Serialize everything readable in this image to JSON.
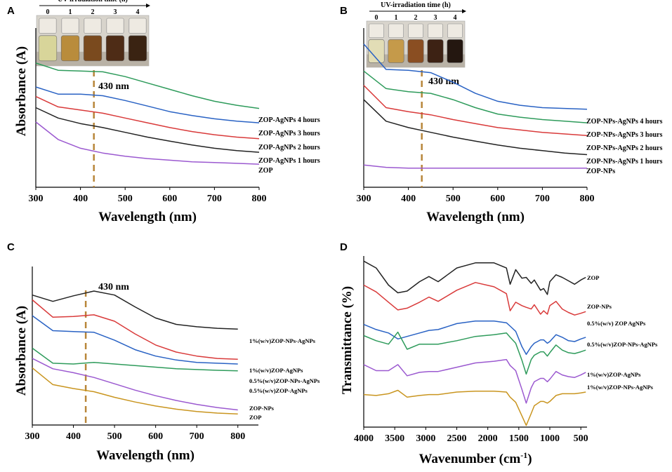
{
  "chart_data": [
    {
      "panel": "A",
      "type": "line",
      "xlabel": "Wavelength (nm)",
      "ylabel": "Absorbance (A)",
      "xlim": [
        300,
        800
      ],
      "xticks": [
        300,
        400,
        500,
        600,
        700,
        800
      ],
      "ylim": [
        0,
        10
      ],
      "y_unit_note": "arbitrary absorbance units, stacked spectra",
      "annotation": {
        "label": "430 nm",
        "x": 430
      },
      "inset": {
        "title": "UV-irradiation time (h)",
        "ticks": [
          "0",
          "1",
          "2",
          "3",
          "4"
        ]
      },
      "x": [
        300,
        350,
        400,
        450,
        500,
        550,
        600,
        650,
        700,
        750,
        800
      ],
      "series": [
        {
          "name": "ZOP-AgNPs 4 hours",
          "color": "#2e9b5b",
          "values": [
            7.8,
            7.35,
            7.3,
            7.25,
            6.95,
            6.55,
            6.15,
            5.75,
            5.4,
            5.15,
            4.95
          ]
        },
        {
          "name": "ZOP-AgNPs 3 hours",
          "color": "#2962c4",
          "values": [
            6.3,
            5.85,
            5.85,
            5.75,
            5.45,
            5.1,
            4.75,
            4.5,
            4.3,
            4.15,
            4.05
          ]
        },
        {
          "name": "ZOP-AgNPs 2 hours",
          "color": "#d93a3a",
          "values": [
            5.7,
            5.05,
            4.85,
            4.65,
            4.35,
            4.05,
            3.75,
            3.5,
            3.3,
            3.15,
            3.05
          ]
        },
        {
          "name": "ZOP-AgNPs 1 hours",
          "color": "#222222",
          "values": [
            5.0,
            4.35,
            4.0,
            3.75,
            3.45,
            3.15,
            2.9,
            2.65,
            2.45,
            2.3,
            2.2
          ]
        },
        {
          "name": "ZOP",
          "color": "#9b59d0",
          "values": [
            4.1,
            3.0,
            2.45,
            2.15,
            1.95,
            1.8,
            1.7,
            1.6,
            1.55,
            1.5,
            1.45
          ]
        }
      ]
    },
    {
      "panel": "B",
      "type": "line",
      "xlabel": "Wavelength (nm)",
      "ylabel": "",
      "xlim": [
        300,
        800
      ],
      "xticks": [
        300,
        400,
        500,
        600,
        700,
        800
      ],
      "ylim": [
        0,
        10
      ],
      "y_unit_note": "arbitrary absorbance units, stacked spectra",
      "annotation": {
        "label": "430 nm",
        "x": 430
      },
      "inset": {
        "title": "UV-irradiation time (h)",
        "ticks": [
          "0",
          "1",
          "2",
          "3",
          "4"
        ]
      },
      "x": [
        300,
        350,
        400,
        450,
        500,
        550,
        600,
        650,
        700,
        750,
        800
      ],
      "series": [
        {
          "name": "ZOP-NPs-AgNPs 4 hours",
          "color": "#2962c4",
          "values": [
            9.0,
            7.4,
            7.35,
            7.2,
            6.6,
            5.9,
            5.4,
            5.15,
            5.0,
            4.95,
            4.9
          ]
        },
        {
          "name": "ZOP-NPs-AgNPs 3 hours",
          "color": "#2e9b5b",
          "values": [
            7.3,
            6.2,
            6.0,
            5.9,
            5.5,
            5.0,
            4.6,
            4.4,
            4.25,
            4.15,
            4.05
          ]
        },
        {
          "name": "ZOP-NPs-AgNPs 2 hours",
          "color": "#d93a3a",
          "values": [
            6.4,
            5.0,
            4.75,
            4.55,
            4.25,
            4.0,
            3.75,
            3.6,
            3.45,
            3.35,
            3.25
          ]
        },
        {
          "name": "ZOP-NPs-AgNPs 1 hours",
          "color": "#222222",
          "values": [
            5.5,
            4.15,
            3.75,
            3.45,
            3.15,
            2.9,
            2.65,
            2.45,
            2.3,
            2.15,
            2.05
          ]
        },
        {
          "name": "ZOP-NPs",
          "color": "#9b59d0",
          "values": [
            1.4,
            1.25,
            1.2,
            1.2,
            1.2,
            1.2,
            1.2,
            1.2,
            1.2,
            1.2,
            1.2
          ]
        }
      ]
    },
    {
      "panel": "C",
      "type": "line",
      "xlabel": "Wavelength (nm)",
      "ylabel": "Absorbance (A)",
      "xlim": [
        300,
        850
      ],
      "xticks": [
        300,
        400,
        500,
        600,
        700,
        800
      ],
      "ylim": [
        0,
        10
      ],
      "y_unit_note": "arbitrary absorbance units, stacked spectra",
      "annotation": {
        "label": "430 nm",
        "x": 430
      },
      "x": [
        300,
        350,
        400,
        450,
        500,
        550,
        600,
        650,
        700,
        750,
        800
      ],
      "series": [
        {
          "name": "1%(w/v)ZOP-NPs-AgNPs",
          "color": "#222222",
          "values": [
            8.2,
            7.8,
            8.15,
            8.45,
            8.2,
            7.45,
            6.75,
            6.35,
            6.2,
            6.1,
            6.05
          ]
        },
        {
          "name": "1%(w/v)ZOP-AgNPs",
          "color": "#d93a3a",
          "values": [
            7.9,
            6.8,
            6.85,
            6.95,
            6.55,
            5.75,
            5.05,
            4.6,
            4.35,
            4.2,
            4.15
          ]
        },
        {
          "name": "0.5%(w/v)ZOP-NPs-AgNPs",
          "color": "#2962c4",
          "values": [
            6.9,
            5.95,
            5.9,
            5.85,
            5.35,
            4.75,
            4.35,
            4.1,
            3.95,
            3.9,
            3.85
          ]
        },
        {
          "name": "0.5%(w/v)ZOP-AgNPs",
          "color": "#2e9b5b",
          "values": [
            4.85,
            3.9,
            3.85,
            3.95,
            3.85,
            3.75,
            3.65,
            3.55,
            3.5,
            3.45,
            3.42
          ]
        },
        {
          "name": "ZOP-NPs",
          "color": "#9b59d0",
          "values": [
            4.2,
            3.55,
            3.3,
            3.0,
            2.6,
            2.2,
            1.85,
            1.55,
            1.3,
            1.1,
            0.95
          ]
        },
        {
          "name": "ZOP",
          "color": "#c9951f",
          "values": [
            3.6,
            2.55,
            2.3,
            2.1,
            1.75,
            1.45,
            1.2,
            1.0,
            0.85,
            0.75,
            0.7
          ]
        }
      ]
    },
    {
      "panel": "D",
      "type": "line",
      "xlabel": "Wavenumber (cm⁻¹)",
      "ylabel": "Transmittance (%)",
      "xlim": [
        4000,
        400
      ],
      "xticks": [
        4000,
        3500,
        3000,
        2500,
        2000,
        1500,
        1000,
        500
      ],
      "ylim": [
        0,
        10
      ],
      "y_unit_note": "arbitrary transmittance units, stacked spectra",
      "x": [
        4000,
        3800,
        3600,
        3450,
        3300,
        3100,
        2950,
        2800,
        2500,
        2200,
        1900,
        1700,
        1640,
        1550,
        1450,
        1380,
        1300,
        1250,
        1150,
        1100,
        1040,
        1000,
        900,
        800,
        700,
        600,
        500,
        420
      ],
      "series": [
        {
          "name": "ZOP",
          "color": "#222222",
          "values": [
            9.7,
            9.3,
            8.3,
            7.85,
            7.95,
            8.5,
            8.8,
            8.5,
            9.3,
            9.6,
            9.6,
            9.3,
            8.35,
            9.2,
            8.7,
            8.75,
            8.4,
            8.6,
            8.0,
            8.1,
            7.75,
            8.5,
            8.9,
            8.75,
            8.55,
            8.35,
            8.6,
            8.75
          ]
        },
        {
          "name": "ZOP-NPs",
          "color": "#d93a3a",
          "values": [
            8.3,
            7.9,
            7.3,
            6.85,
            6.95,
            7.3,
            7.6,
            7.35,
            8.0,
            8.45,
            8.2,
            7.8,
            6.8,
            7.3,
            7.1,
            7.0,
            6.9,
            7.15,
            6.6,
            6.8,
            6.6,
            7.1,
            7.35,
            6.9,
            6.7,
            6.55,
            6.65,
            6.75
          ]
        },
        {
          "name": "0.5%(w/v) ZOP AgNPs",
          "color": "#2962c4",
          "values": [
            6.0,
            5.7,
            5.5,
            5.15,
            5.3,
            5.5,
            5.65,
            5.7,
            6.05,
            6.2,
            6.2,
            6.1,
            5.9,
            5.6,
            4.7,
            4.25,
            4.7,
            4.9,
            5.1,
            5.1,
            4.9,
            5.0,
            5.4,
            5.25,
            5.05,
            5.0,
            5.15,
            5.25
          ]
        },
        {
          "name": "0.5%(w/v)ZOP-NPs-AgNPs",
          "color": "#2e9b5b",
          "values": [
            5.35,
            5.05,
            4.85,
            5.55,
            4.55,
            4.85,
            4.85,
            4.85,
            5.05,
            5.3,
            5.4,
            5.5,
            5.25,
            4.9,
            3.9,
            3.1,
            3.95,
            4.2,
            4.4,
            4.4,
            4.15,
            4.35,
            4.8,
            4.5,
            4.35,
            4.3,
            4.4,
            4.5
          ]
        },
        {
          "name": "1%(w/v)ZOP-AgNPs",
          "color": "#9b59d0",
          "values": [
            3.65,
            3.3,
            3.3,
            3.65,
            3.0,
            3.2,
            3.25,
            3.25,
            3.5,
            3.75,
            3.85,
            3.95,
            3.6,
            3.3,
            2.2,
            1.4,
            2.3,
            2.65,
            2.85,
            2.85,
            2.65,
            2.8,
            3.25,
            3.05,
            2.95,
            2.9,
            3.05,
            3.2
          ]
        },
        {
          "name": "1%(w/v)ZOP-NPs-AgNPs",
          "color": "#c9951f",
          "values": [
            1.9,
            1.85,
            1.95,
            2.15,
            1.75,
            1.85,
            1.9,
            1.9,
            2.05,
            2.1,
            2.1,
            2.05,
            1.75,
            1.45,
            0.65,
            0.1,
            0.8,
            1.25,
            1.5,
            1.5,
            1.4,
            1.5,
            1.85,
            1.95,
            1.95,
            1.95,
            2.0,
            2.05
          ]
        }
      ]
    }
  ]
}
